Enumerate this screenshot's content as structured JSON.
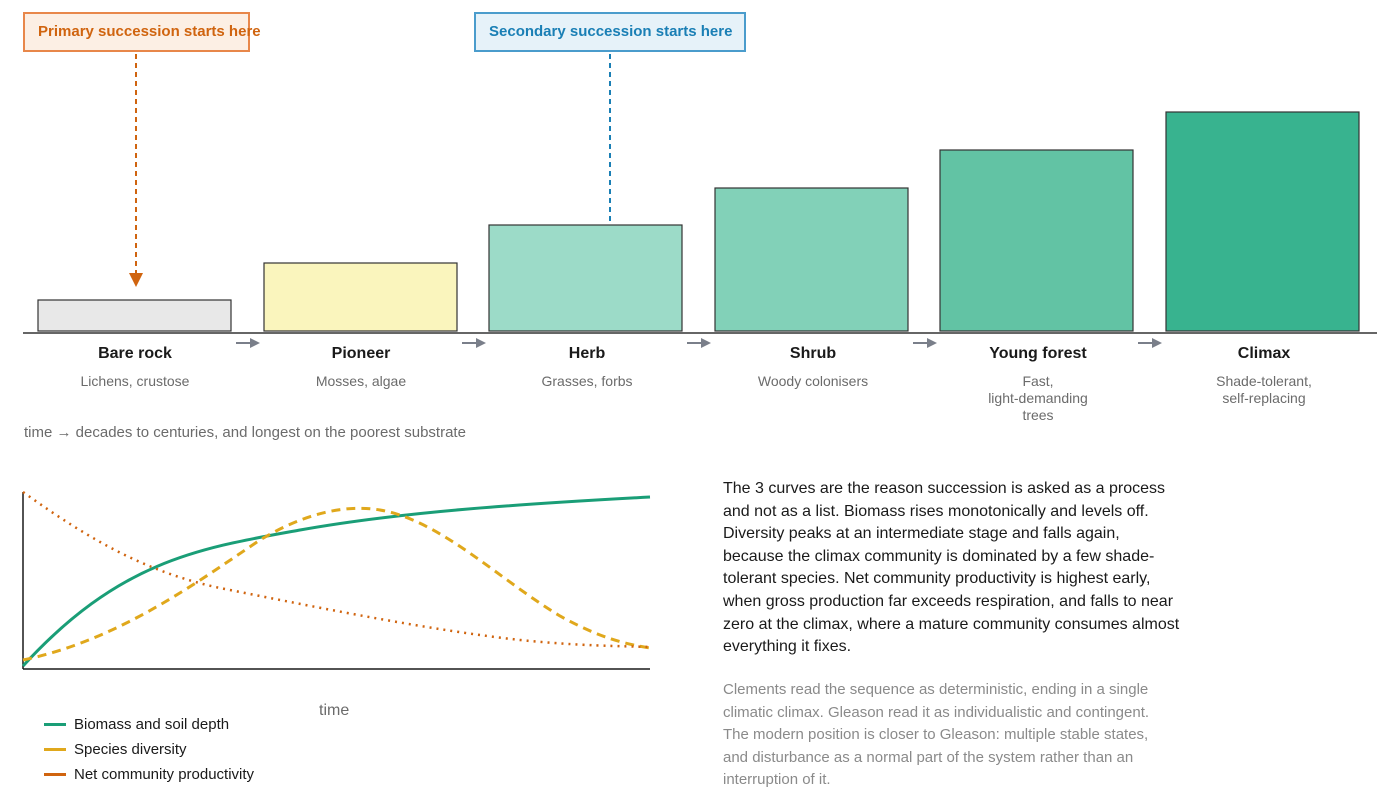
{
  "callouts": {
    "primary": "Primary succession starts here",
    "secondary": "Secondary succession starts here"
  },
  "stages": [
    {
      "name": "Bare rock",
      "sub": "Lichens, crustose"
    },
    {
      "name": "Pioneer",
      "sub": "Mosses, algae"
    },
    {
      "name": "Herb",
      "sub": "Grasses, forbs"
    },
    {
      "name": "Shrub",
      "sub": "Woody colonisers"
    },
    {
      "name": "Young forest",
      "sub": "Fast,\nlight-demanding\ntrees"
    },
    {
      "name": "Climax",
      "sub": "Shade-tolerant,\nself-replacing"
    }
  ],
  "timeline_caption": "time → decades to centuries, and longest on the poorest substrate",
  "chart": {
    "xlabel": "time",
    "legend": [
      {
        "label": "Biomass and soil depth",
        "color": "#1a9e77"
      },
      {
        "label": "Species diversity",
        "color": "#e0a81c"
      },
      {
        "label": "Net community productivity",
        "color": "#d0640f"
      }
    ]
  },
  "text": {
    "paragraph1": "The 3 curves are the reason succession is asked as a process and not as a list. Biomass rises monotonically and levels off. Diversity peaks at an intermediate stage and falls again, because the climax community is dominated by a few shade-tolerant species. Net community productivity is highest early, when gross production far exceeds respiration, and falls to near zero at the climax, where a mature community consumes almost everything it fixes.",
    "paragraph2": "Clements read the sequence as deterministic, ending in a single climatic climax. Gleason read it as individualistic and contingent. The modern position is closer to Gleason: multiple stable states, and disturbance as a normal part of the system rather than an interruption of it."
  },
  "colors": {
    "bare_rock": "#e8e8e8",
    "pioneer": "#faf5bd",
    "herb": "#9cdbc8",
    "shrub": "#82d1b8",
    "young_forest": "#62c3a4",
    "climax": "#38b38f"
  }
}
